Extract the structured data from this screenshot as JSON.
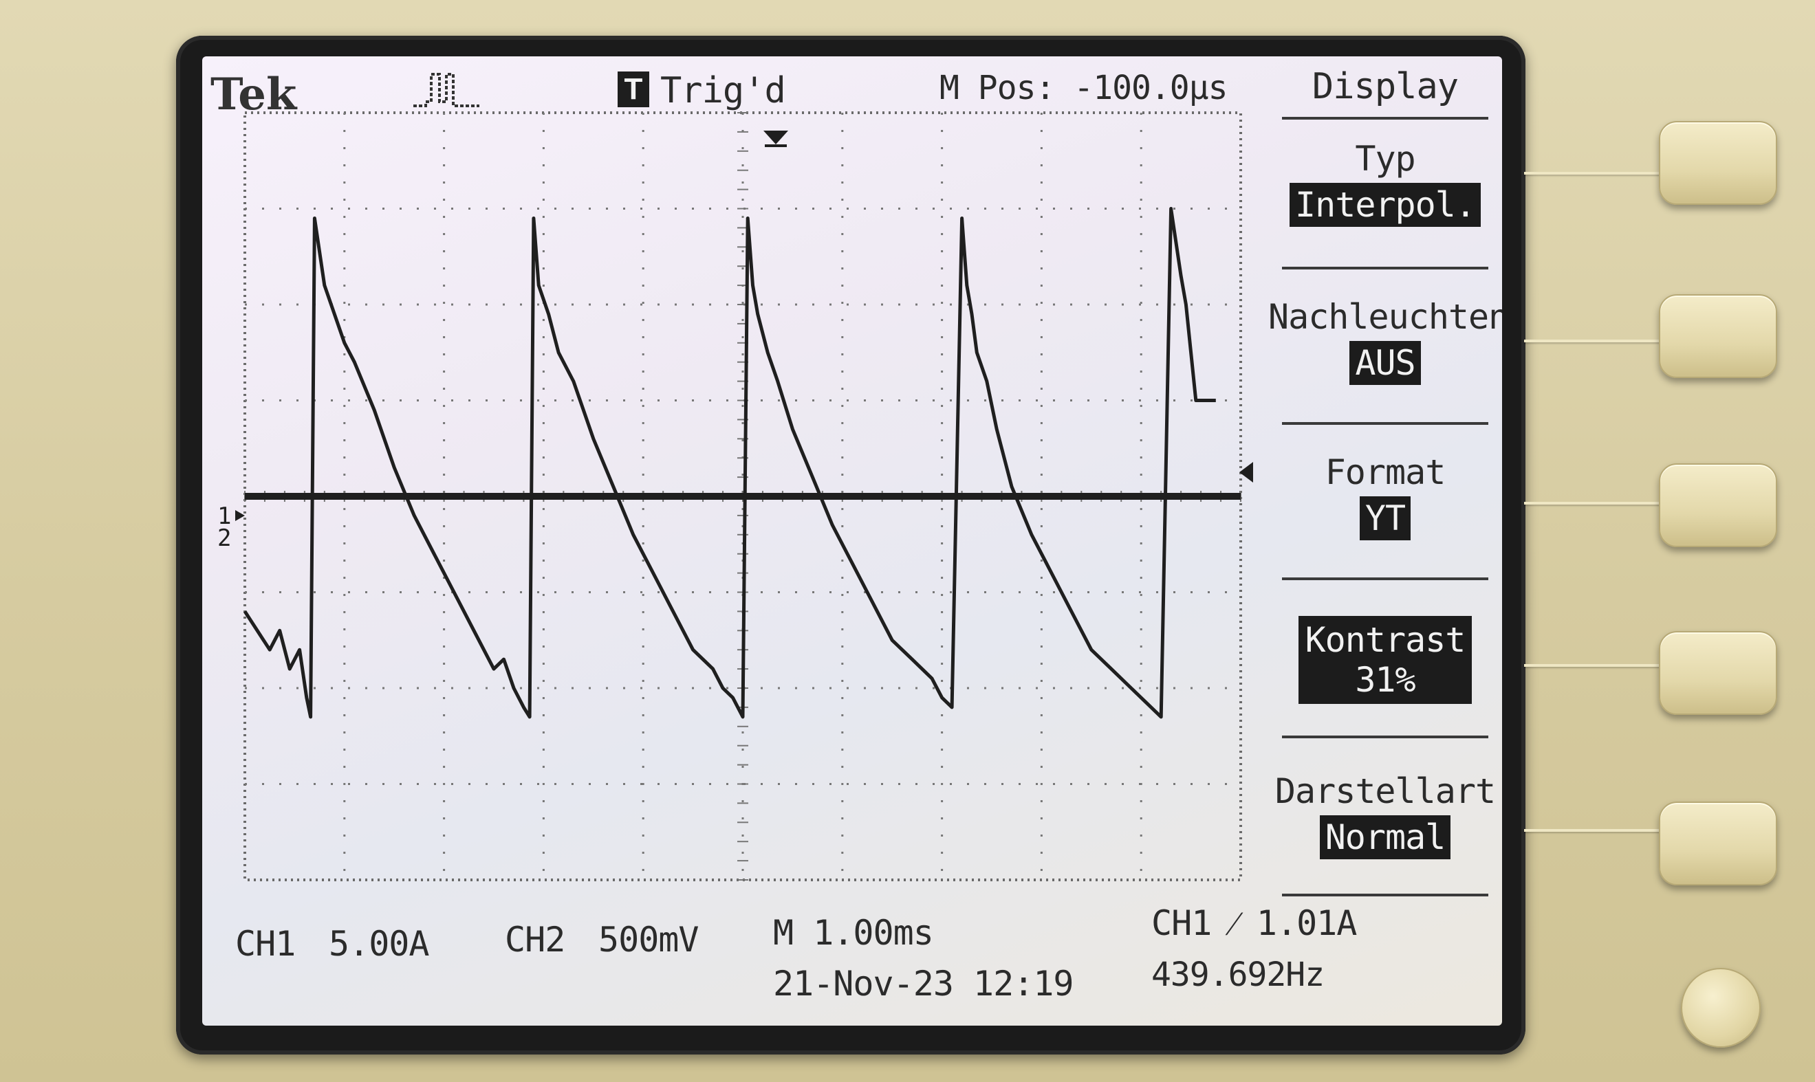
{
  "header": {
    "brand": "Tek",
    "acquisition_icon": "acquire-pulse-icon",
    "trigger_badge": "T",
    "trigger_status": "Trig'd",
    "main_position": "M Pos: -100.0µs"
  },
  "menu": {
    "title": "Display",
    "items": [
      {
        "label": "Typ",
        "value": "Interpol."
      },
      {
        "label": "Nachleuchten",
        "value": "AUS"
      },
      {
        "label": "Format",
        "value": "YT"
      },
      {
        "label": "Kontrast",
        "value": "31%"
      },
      {
        "label": "Darstellart",
        "value": "Normal"
      }
    ],
    "selected_index": 3
  },
  "readouts": {
    "ch1_label": "CH1",
    "ch1_scale": "5.00A",
    "ch2_label": "CH2",
    "ch2_scale": "500mV",
    "timebase": "M 1.00ms",
    "datetime": "21-Nov-23 12:19",
    "trigger": "CH1 ⁄ 1.01A",
    "frequency": "439.692Hz"
  },
  "markers": {
    "ch1_marker": "1",
    "ch2_marker": "2"
  },
  "colors": {
    "trace": "#1f1f1f",
    "screen": "#efeaf3",
    "bezel": "#1b1b1b",
    "body": "#d9cfa6"
  },
  "chart_data": {
    "type": "line",
    "title": "",
    "xlabel": "",
    "ylabel": "",
    "x_divisions": 10,
    "y_divisions": 8,
    "xlim": [
      0,
      10
    ],
    "ylim": [
      -4,
      4
    ],
    "grid": true,
    "series": [
      {
        "x": [
          0.0,
          0.25,
          0.35,
          0.45,
          0.55,
          0.62,
          0.66,
          0.7,
          0.8,
          0.9,
          1.0,
          1.1,
          1.3,
          1.5,
          1.7,
          1.9,
          2.1,
          2.3,
          2.5,
          2.6,
          2.7,
          2.8,
          2.86,
          2.9,
          2.95,
          3.05,
          3.15,
          3.3,
          3.5,
          3.7,
          3.9,
          4.1,
          4.3,
          4.5,
          4.7,
          4.8,
          4.9,
          5.0,
          5.05,
          5.1,
          5.15,
          5.25,
          5.35,
          5.5,
          5.7,
          5.9,
          6.1,
          6.3,
          6.5,
          6.7,
          6.9,
          7.0,
          7.1,
          7.2,
          7.25,
          7.3,
          7.35,
          7.45,
          7.55,
          7.7,
          7.9,
          8.1,
          8.3,
          8.5,
          8.7,
          8.9,
          9.1,
          9.2,
          9.3,
          9.4,
          9.45,
          9.5,
          9.55,
          9.65,
          9.75
        ],
        "y": [
          -1.2,
          -1.6,
          -1.4,
          -1.8,
          -1.6,
          -2.1,
          -2.3,
          2.9,
          2.2,
          1.9,
          1.6,
          1.4,
          0.9,
          0.3,
          -0.2,
          -0.6,
          -1.0,
          -1.4,
          -1.8,
          -1.7,
          -2.0,
          -2.2,
          -2.3,
          2.9,
          2.2,
          1.9,
          1.5,
          1.2,
          0.6,
          0.1,
          -0.4,
          -0.8,
          -1.2,
          -1.6,
          -1.8,
          -2.0,
          -2.1,
          -2.3,
          2.9,
          2.2,
          1.9,
          1.5,
          1.2,
          0.7,
          0.2,
          -0.3,
          -0.7,
          -1.1,
          -1.5,
          -1.7,
          -1.9,
          -2.1,
          -2.2,
          2.9,
          2.2,
          1.9,
          1.5,
          1.2,
          0.7,
          0.1,
          -0.4,
          -0.8,
          -1.2,
          -1.6,
          -1.8,
          -2.0,
          -2.2,
          -2.3,
          3.0,
          2.3,
          2.0,
          1.5,
          1.0,
          1.0,
          1.0
        ]
      },
      {
        "x": [
          0,
          10
        ],
        "y": [
          0,
          0
        ]
      }
    ]
  }
}
